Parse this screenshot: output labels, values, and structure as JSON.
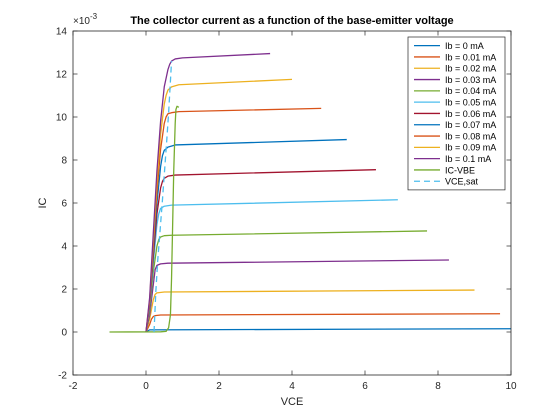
{
  "chart_data": {
    "type": "line",
    "title": "The collector current as a function of the base-emitter voltage",
    "xlabel": "VCE",
    "ylabel": "IC",
    "y_exponent_label": "×10",
    "y_exponent_power": "-3",
    "xlim": [
      -2,
      10
    ],
    "ylim": [
      -2,
      14
    ],
    "x_ticks": [
      -2,
      0,
      2,
      4,
      6,
      8,
      10
    ],
    "y_ticks": [
      -2,
      0,
      2,
      4,
      6,
      8,
      10,
      12,
      14
    ],
    "x_tick_labels": [
      "-2",
      "0",
      "2",
      "4",
      "6",
      "8",
      "10"
    ],
    "y_tick_labels": [
      "-2",
      "0",
      "2",
      "4",
      "6",
      "8",
      "10",
      "12",
      "14"
    ],
    "grid": false,
    "legend_position": "top-right",
    "series": [
      {
        "name": "Ib = 0 mA",
        "color": "#0072BD",
        "dash": "solid",
        "x": [
          0,
          0.1,
          10
        ],
        "y": [
          0,
          0.1,
          0.15
        ]
      },
      {
        "name": "Ib = 0.01 mA",
        "color": "#D95319",
        "dash": "solid",
        "x": [
          0,
          0.1,
          0.15,
          0.2,
          0.25,
          0.4,
          9.7
        ],
        "y": [
          0,
          0.35,
          0.6,
          0.72,
          0.76,
          0.79,
          0.85
        ]
      },
      {
        "name": "Ib = 0.02 mA",
        "color": "#EDB120",
        "dash": "solid",
        "x": [
          0,
          0.1,
          0.2,
          0.25,
          0.3,
          0.5,
          9.0
        ],
        "y": [
          0,
          0.6,
          1.5,
          1.75,
          1.82,
          1.86,
          1.95
        ]
      },
      {
        "name": "Ib = 0.03 mA",
        "color": "#7E2F8E",
        "dash": "solid",
        "x": [
          0,
          0.1,
          0.2,
          0.25,
          0.3,
          0.4,
          0.6,
          8.3
        ],
        "y": [
          0,
          0.8,
          2.2,
          2.9,
          3.1,
          3.17,
          3.2,
          3.35
        ]
      },
      {
        "name": "Ib = 0.04 mA",
        "color": "#77AC30",
        "dash": "solid",
        "x": [
          0,
          0.1,
          0.2,
          0.3,
          0.35,
          0.4,
          0.5,
          0.7,
          7.7
        ],
        "y": [
          0,
          1.0,
          2.8,
          4.0,
          4.3,
          4.42,
          4.48,
          4.5,
          4.7
        ]
      },
      {
        "name": "Ib = 0.05 mA",
        "color": "#4DBEEE",
        "dash": "solid",
        "x": [
          0,
          0.1,
          0.2,
          0.3,
          0.35,
          0.4,
          0.5,
          0.7,
          6.9
        ],
        "y": [
          0,
          1.1,
          3.2,
          5.0,
          5.5,
          5.75,
          5.85,
          5.9,
          6.15
        ]
      },
      {
        "name": "Ib = 0.06 mA",
        "color": "#A2142F",
        "dash": "solid",
        "x": [
          0,
          0.1,
          0.2,
          0.3,
          0.4,
          0.45,
          0.5,
          0.6,
          0.8,
          6.3
        ],
        "y": [
          0,
          1.2,
          3.5,
          5.5,
          6.7,
          7.0,
          7.15,
          7.25,
          7.3,
          7.55
        ]
      },
      {
        "name": "Ib = 0.07 mA",
        "color": "#0072BD",
        "dash": "solid",
        "x": [
          0,
          0.1,
          0.2,
          0.3,
          0.4,
          0.45,
          0.5,
          0.6,
          0.8,
          5.5
        ],
        "y": [
          0,
          1.3,
          3.8,
          6.0,
          7.7,
          8.2,
          8.45,
          8.6,
          8.7,
          8.95
        ]
      },
      {
        "name": "Ib = 0.08 mA",
        "color": "#D95319",
        "dash": "solid",
        "x": [
          0,
          0.1,
          0.2,
          0.3,
          0.4,
          0.5,
          0.55,
          0.6,
          0.7,
          0.9,
          4.8
        ],
        "y": [
          0,
          1.4,
          4.0,
          6.5,
          8.5,
          9.7,
          10.0,
          10.15,
          10.2,
          10.25,
          10.4
        ]
      },
      {
        "name": "Ib = 0.09 mA",
        "color": "#EDB120",
        "dash": "solid",
        "x": [
          0,
          0.1,
          0.2,
          0.3,
          0.4,
          0.5,
          0.55,
          0.6,
          0.7,
          0.9,
          4.0
        ],
        "y": [
          0,
          1.5,
          4.3,
          7.0,
          9.2,
          10.6,
          11.0,
          11.25,
          11.4,
          11.5,
          11.75
        ]
      },
      {
        "name": "Ib = 0.1 mA",
        "color": "#7E2F8E",
        "dash": "solid",
        "x": [
          0,
          0.1,
          0.2,
          0.3,
          0.4,
          0.5,
          0.6,
          0.65,
          0.7,
          0.8,
          1.0,
          3.4
        ],
        "y": [
          0,
          1.6,
          4.6,
          7.5,
          9.8,
          11.4,
          12.2,
          12.45,
          12.6,
          12.7,
          12.75,
          12.95
        ]
      },
      {
        "name": "IC-VBE",
        "color": "#77AC30",
        "dash": "solid",
        "x": [
          -1,
          0.4,
          0.55,
          0.62,
          0.67,
          0.7,
          0.73,
          0.76,
          0.8,
          0.82,
          0.85,
          0.9
        ],
        "y": [
          0,
          0.01,
          0.03,
          0.2,
          0.8,
          2.5,
          5.0,
          7.5,
          9.7,
          10.35,
          10.5,
          10.45
        ]
      },
      {
        "name": "VCE,sat",
        "color": "#4DBEEE",
        "dash": "dashed",
        "x": [
          0.22,
          0.27,
          0.32,
          0.38,
          0.44,
          0.5,
          0.56,
          0.62,
          0.7
        ],
        "y": [
          0,
          1.9,
          3.3,
          4.6,
          5.9,
          7.3,
          8.7,
          10.2,
          12.6
        ]
      }
    ]
  }
}
